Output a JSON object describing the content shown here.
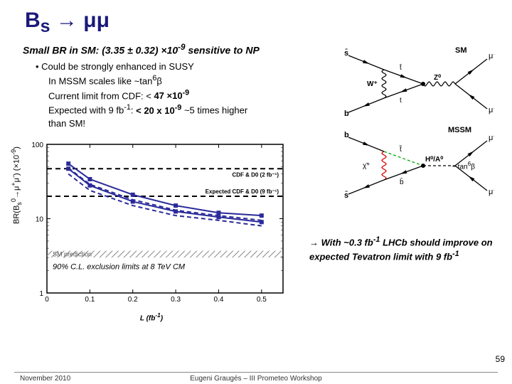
{
  "title_html": "B<sub>s</sub> → μμ",
  "subtitle_html": "Small BR in SM: (3.35 ± 0.32) ×10<sup>-9</sup> sensitive to NP",
  "bullets": {
    "line1": "• Could be strongly enhanced in SUSY",
    "line2_html": "In MSSM scales like ~tan<sup>6</sup>β",
    "line3_html": "Current limit from CDF: < <b>47 ×10<sup>-9</sup></b>",
    "line4_html": "Expected with 9 fb<sup>-1</sup>: <b>&lt; 20 x 10<sup>-9</sup></b> ~5 times higher",
    "line5": "than SM!"
  },
  "note_html": "→ With ~0.3 fb<sup>-1</sup> LHCb should improve on expected Tevatron limit with 9 fb<sup>-1</sup>",
  "pagenum": "59",
  "footer_left": "November 2010",
  "footer_center": "Eugeni Graugés – III Prometeo Workshop",
  "chart": {
    "type": "line",
    "ylabel_html": "BR(B<sub>s</sub><sup>0</sup>→μ<sup>+</sup>μ<sup>-</sup>)  (×10<sup>-9</sup>)",
    "xlabel_html": "L (fb<sup>-1</sup>)",
    "xlim": [
      0.0,
      0.55
    ],
    "ylim": [
      1,
      100
    ],
    "yscale": "log",
    "xticks": [
      0,
      0.1,
      0.2,
      0.3,
      0.4,
      0.5
    ],
    "yticks": [
      1,
      10,
      100
    ],
    "grid_color": "#cccccc",
    "bg_color": "#ffffff",
    "axis_color": "#000000",
    "series": [
      {
        "name": "upper_solid",
        "style": "solid",
        "color": "#2a2a9a",
        "width": 2,
        "marker": "square",
        "x": [
          0.05,
          0.1,
          0.2,
          0.3,
          0.4,
          0.5
        ],
        "y": [
          55,
          34,
          21,
          15,
          12,
          11
        ]
      },
      {
        "name": "upper_dashed",
        "style": "dashed",
        "color": "#2a2a9a",
        "width": 2,
        "marker": "none",
        "x": [
          0.05,
          0.1,
          0.2,
          0.3,
          0.4,
          0.5
        ],
        "y": [
          48,
          29,
          18,
          13,
          11,
          9.5
        ]
      },
      {
        "name": "lower_solid",
        "style": "solid",
        "color": "#2a2a9a",
        "width": 2,
        "marker": "square",
        "x": [
          0.05,
          0.1,
          0.2,
          0.3,
          0.4,
          0.5
        ],
        "y": [
          47,
          28,
          17,
          12.5,
          10.5,
          9
        ]
      },
      {
        "name": "lower_dashed",
        "style": "dashed",
        "color": "#2a2a9a",
        "width": 2,
        "marker": "none",
        "x": [
          0.05,
          0.1,
          0.2,
          0.3,
          0.4,
          0.5
        ],
        "y": [
          40,
          24,
          15,
          11,
          9.5,
          8
        ]
      }
    ],
    "hlines": [
      {
        "y": 47,
        "style": "dashed",
        "color": "#000",
        "width": 2,
        "label": "CDF & D0 (2 fb⁻¹)"
      },
      {
        "y": 20,
        "style": "dashed",
        "color": "#000",
        "width": 2,
        "label": "Expected CDF & D0 (9 fb⁻¹)"
      }
    ],
    "sm_band": {
      "ymin": 3.0,
      "ymax": 3.7,
      "label": "SM prediction",
      "fill": "hatch",
      "color": "#888"
    },
    "caption": "90% C.L. exclusion limits at 8 TeV CM",
    "caption_fontsize": 11
  },
  "feynman": {
    "sm": {
      "label": "SM",
      "left_top": "s̄",
      "left_bot": "b",
      "right_top": "μ⁺",
      "right_bot": "μ⁻",
      "internal": [
        "W⁺",
        "t̄",
        "t",
        "Z⁰"
      ],
      "line_color": "#000",
      "wave_color": "#000"
    },
    "mssm": {
      "label": "MSSM",
      "left_top": "b",
      "left_bot": "s̄",
      "right_top": "μ⁺",
      "right_bot": "μ⁻",
      "internal": [
        "χ̃⁺",
        "t̃",
        "b̄",
        "H⁰/A⁰"
      ],
      "line_color": "#000",
      "wave_color": "#d00",
      "dash_color": "#0a0"
    },
    "tanb_html": "~ tan<sup>6</sup>β"
  },
  "colors": {
    "title": "#1a1a7a",
    "text": "#000000",
    "series": "#2a2a9a",
    "grid": "#cccccc"
  }
}
